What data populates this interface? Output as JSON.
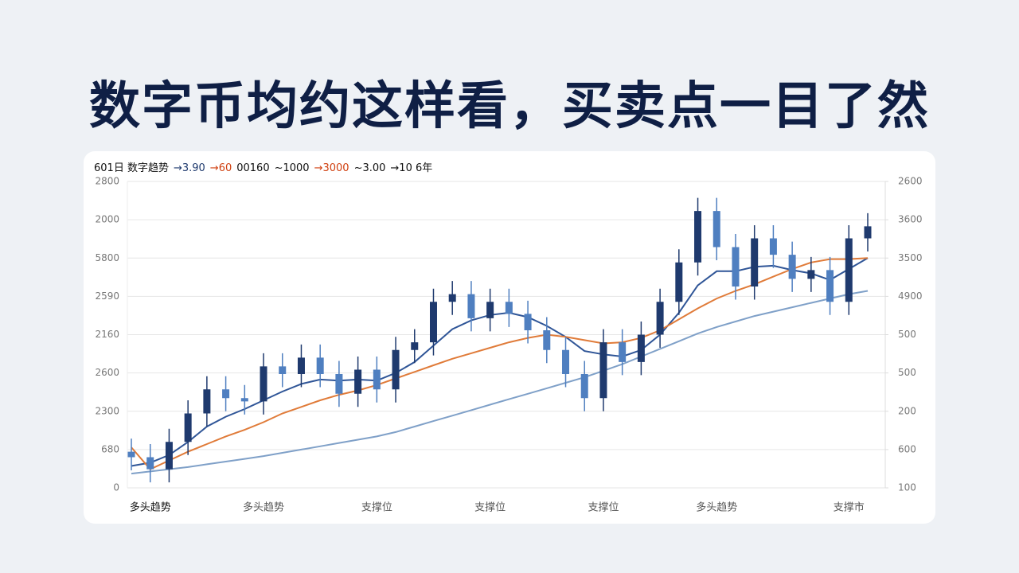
{
  "chart_data": {
    "type": "candlestick",
    "title": "数字币均约这样看，买卖点一目了然",
    "header_items": [
      {
        "text": "601日 数字趋势",
        "color": "#111111"
      },
      {
        "text": "→3.90",
        "color": "#1f3a6e"
      },
      {
        "text": "→60",
        "color": "#d04010"
      },
      {
        "text": "00160",
        "color": "#111111"
      },
      {
        "text": "~1000",
        "color": "#111111"
      },
      {
        "text": "→3000",
        "color": "#d04010"
      },
      {
        "text": "~3.00",
        "color": "#111111"
      },
      {
        "text": "→10 6年",
        "color": "#111111"
      }
    ],
    "categories": [
      null,
      "多头趋势",
      null,
      null,
      null,
      null,
      null,
      "多头趋势",
      null,
      null,
      null,
      null,
      null,
      "支撑位",
      null,
      null,
      null,
      null,
      null,
      "支撑位",
      null,
      null,
      null,
      null,
      null,
      "支撑位",
      null,
      null,
      null,
      null,
      null,
      "多头趋势",
      null,
      null,
      null,
      null,
      null,
      null,
      "支撑市",
      null
    ],
    "open": [
      330,
      280,
      170,
      420,
      680,
      900,
      820,
      790,
      1110,
      1040,
      1190,
      1040,
      860,
      1080,
      900,
      1260,
      1330,
      1700,
      1770,
      1550,
      1700,
      1590,
      1440,
      1260,
      1040,
      820,
      1330,
      1150,
      1400,
      1700,
      2060,
      2530,
      2200,
      1840,
      2280,
      2130,
      1910,
      1990,
      1700,
      2280
    ],
    "high": [
      450,
      400,
      540,
      800,
      1020,
      1020,
      940,
      1230,
      1230,
      1310,
      1310,
      1160,
      1200,
      1200,
      1380,
      1450,
      1820,
      1890,
      1890,
      1820,
      1820,
      1710,
      1560,
      1380,
      1160,
      1450,
      1450,
      1520,
      1820,
      2180,
      2650,
      2650,
      2320,
      2400,
      2400,
      2250,
      2110,
      2110,
      2400,
      2510
    ],
    "low": [
      160,
      50,
      50,
      300,
      560,
      700,
      670,
      670,
      920,
      920,
      920,
      740,
      740,
      780,
      780,
      1140,
      1210,
      1580,
      1430,
      1430,
      1470,
      1320,
      1140,
      920,
      700,
      700,
      1030,
      1030,
      1280,
      1580,
      1940,
      2080,
      1720,
      1720,
      2010,
      1790,
      1790,
      1580,
      1580,
      2160
    ],
    "close": [
      280,
      170,
      420,
      680,
      900,
      820,
      790,
      1110,
      1040,
      1190,
      1040,
      860,
      1080,
      900,
      1260,
      1330,
      1700,
      1770,
      1550,
      1700,
      1590,
      1440,
      1260,
      1040,
      820,
      1330,
      1150,
      1400,
      1700,
      2060,
      2530,
      2200,
      1840,
      2280,
      2130,
      1910,
      1990,
      1700,
      2280,
      2390
    ],
    "up_color": "#1f3a6e",
    "down_color": "#4f7fc0",
    "series": [
      {
        "color": "#2f5597",
        "values": [
          200,
          230,
          300,
          420,
          560,
          650,
          720,
          800,
          880,
          950,
          990,
          980,
          990,
          980,
          1050,
          1150,
          1300,
          1450,
          1530,
          1580,
          1600,
          1560,
          1480,
          1380,
          1250,
          1220,
          1200,
          1260,
          1400,
          1600,
          1850,
          1980,
          1980,
          2020,
          2030,
          1990,
          1960,
          1900,
          2000,
          2100
        ]
      },
      {
        "color": "#e07b39",
        "values": [
          370,
          170,
          250,
          330,
          400,
          470,
          530,
          600,
          680,
          740,
          800,
          850,
          890,
          940,
          1000,
          1060,
          1120,
          1180,
          1230,
          1280,
          1330,
          1370,
          1400,
          1380,
          1350,
          1320,
          1330,
          1370,
          1440,
          1540,
          1640,
          1730,
          1800,
          1860,
          1930,
          2000,
          2060,
          2090,
          2090,
          2100
        ]
      },
      {
        "color": "#7fa0c8",
        "values": [
          130,
          150,
          170,
          190,
          215,
          240,
          265,
          290,
          320,
          350,
          380,
          410,
          440,
          470,
          510,
          560,
          610,
          660,
          710,
          760,
          810,
          860,
          910,
          960,
          1010,
          1070,
          1130,
          1200,
          1270,
          1340,
          1410,
          1470,
          1520,
          1570,
          1610,
          1650,
          1690,
          1730,
          1770,
          1800
        ]
      }
    ],
    "ylim": [
      0,
      2800
    ],
    "yticks": [
      0,
      {
        "value": 350,
        "label": "680"
      },
      {
        "value": 700,
        "label": "2300"
      },
      {
        "value": 1050,
        "label": "2600"
      },
      {
        "value": 1400,
        "label": "2160"
      },
      {
        "value": 1750,
        "label": "2590"
      },
      {
        "value": 2100,
        "label": "5800"
      },
      {
        "value": 2450,
        "label": "2000"
      },
      2800
    ],
    "y2lim": [
      100,
      2600
    ],
    "y2ticks": [
      100,
      {
        "value": 412.5,
        "label": "600"
      },
      {
        "value": 725,
        "label": "200"
      },
      {
        "value": 1037.5,
        "label": "500"
      },
      {
        "value": 1350,
        "label": "500"
      },
      {
        "value": 1662.5,
        "label": "4900"
      },
      {
        "value": 1975,
        "label": "3500"
      },
      {
        "value": 2287.5,
        "label": "3600"
      },
      2600
    ],
    "grid": true
  }
}
